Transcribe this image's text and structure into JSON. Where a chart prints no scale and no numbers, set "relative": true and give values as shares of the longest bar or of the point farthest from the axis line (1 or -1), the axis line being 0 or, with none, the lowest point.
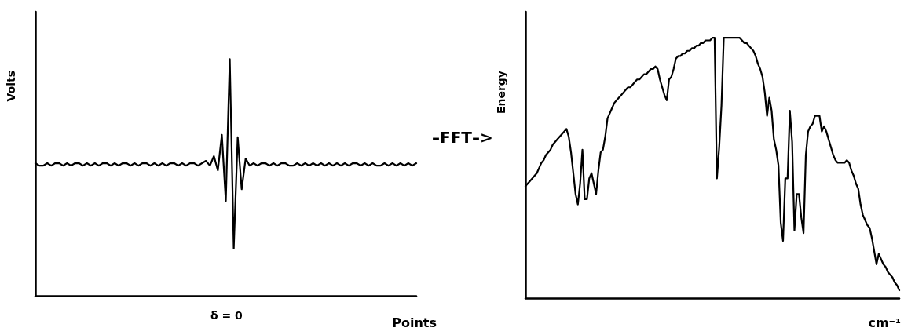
{
  "chart_data": [
    {
      "type": "line",
      "relative": true,
      "xlabel": "Points",
      "ylabel": "Volts",
      "color": "#000000",
      "marker": "none",
      "line_style": "solid",
      "annotations": [
        "δ = 0"
      ],
      "categories": [
        null,
        null,
        null,
        null,
        null,
        null,
        null,
        null,
        null,
        null,
        null,
        null,
        null,
        null,
        null,
        null,
        null,
        null,
        null,
        null,
        null,
        null,
        null,
        null,
        null,
        null,
        null,
        null,
        null,
        null,
        null,
        null,
        null,
        null,
        null,
        null,
        null,
        null,
        null,
        null,
        null,
        null,
        null,
        null,
        null,
        null,
        null,
        null,
        null,
        null,
        null,
        null,
        null,
        null,
        null,
        null,
        null,
        null,
        null,
        null,
        null,
        null,
        null,
        null,
        null,
        null,
        null,
        null,
        null,
        null,
        null,
        null,
        null,
        null,
        null,
        null,
        null,
        null,
        null,
        null,
        null,
        null,
        null,
        null,
        null,
        null,
        null,
        null,
        null,
        null,
        null,
        null,
        null,
        null,
        null,
        null,
        null
      ],
      "values": [
        0.56,
        0.55,
        0.55,
        0.56,
        0.55,
        0.56,
        0.56,
        0.55,
        0.56,
        0.55,
        0.56,
        0.56,
        0.55,
        0.56,
        0.55,
        0.56,
        0.55,
        0.56,
        0.56,
        0.55,
        0.56,
        0.55,
        0.56,
        0.56,
        0.55,
        0.56,
        0.55,
        0.56,
        0.56,
        0.55,
        0.56,
        0.55,
        0.56,
        0.55,
        0.56,
        0.56,
        0.55,
        0.56,
        0.55,
        0.56,
        0.56,
        0.55,
        0.56,
        0.57,
        0.55,
        0.59,
        0.53,
        0.68,
        0.4,
        1.0,
        0.2,
        0.67,
        0.45,
        0.58,
        0.55,
        0.56,
        0.55,
        0.56,
        0.56,
        0.55,
        0.56,
        0.55,
        0.56,
        0.56,
        0.55,
        0.55,
        0.56,
        0.55,
        0.56,
        0.55,
        0.56,
        0.55,
        0.56,
        0.55,
        0.56,
        0.55,
        0.56,
        0.55,
        0.56,
        0.55,
        0.56,
        0.56,
        0.55,
        0.56,
        0.55,
        0.56,
        0.55,
        0.55,
        0.56,
        0.55,
        0.56,
        0.55,
        0.56,
        0.55,
        0.56,
        0.55,
        0.56
      ]
    },
    {
      "type": "line",
      "relative": true,
      "xlabel": "cm⁻¹",
      "ylabel": "Energy",
      "color": "#000000",
      "marker": "none",
      "line_style": "solid",
      "annotations": [
        "–FFT–>"
      ],
      "categories": [
        null,
        null,
        null,
        null,
        null,
        null,
        null,
        null,
        null,
        null,
        null,
        null,
        null,
        null,
        null,
        null,
        null,
        null,
        null,
        null,
        null,
        null,
        null,
        null,
        null,
        null,
        null,
        null,
        null,
        null,
        null,
        null,
        null,
        null,
        null,
        null,
        null,
        null,
        null,
        null,
        null,
        null,
        null,
        null,
        null,
        null,
        null,
        null,
        null,
        null,
        null,
        null,
        null,
        null,
        null,
        null,
        null,
        null,
        null,
        null,
        null,
        null,
        null,
        null,
        null,
        null,
        null,
        null,
        null,
        null,
        null,
        null,
        null,
        null,
        null,
        null,
        null,
        null,
        null,
        null,
        null,
        null,
        null,
        null,
        null,
        null,
        null,
        null,
        null,
        null,
        null,
        null,
        null,
        null,
        null,
        null,
        null,
        null,
        null,
        null,
        null,
        null,
        null,
        null,
        null,
        null,
        null,
        null,
        null,
        null,
        null,
        null,
        null,
        null,
        null,
        null,
        null,
        null,
        null,
        null,
        null,
        null,
        null,
        null,
        null,
        null,
        null,
        null,
        null,
        null,
        null,
        null,
        null,
        null,
        null,
        null,
        null,
        null,
        null,
        null,
        null,
        null,
        null,
        null,
        null,
        null,
        null,
        null,
        null,
        null,
        null,
        null,
        null,
        null,
        null,
        null,
        null,
        null,
        null,
        null,
        null,
        null,
        null,
        null,
        null
      ],
      "values": [
        0.43,
        0.44,
        0.45,
        0.46,
        0.47,
        0.48,
        0.5,
        0.52,
        0.53,
        0.55,
        0.56,
        0.57,
        0.59,
        0.6,
        0.61,
        0.62,
        0.63,
        0.64,
        0.65,
        0.62,
        0.56,
        0.48,
        0.4,
        0.36,
        0.44,
        0.57,
        0.38,
        0.38,
        0.46,
        0.48,
        0.44,
        0.4,
        0.49,
        0.56,
        0.57,
        0.62,
        0.69,
        0.71,
        0.73,
        0.75,
        0.76,
        0.77,
        0.78,
        0.79,
        0.8,
        0.81,
        0.81,
        0.82,
        0.83,
        0.84,
        0.84,
        0.85,
        0.86,
        0.86,
        0.87,
        0.88,
        0.88,
        0.89,
        0.88,
        0.84,
        0.81,
        0.78,
        0.76,
        0.84,
        0.85,
        0.88,
        0.92,
        0.93,
        0.93,
        0.94,
        0.94,
        0.95,
        0.95,
        0.96,
        0.96,
        0.97,
        0.97,
        0.98,
        0.98,
        0.99,
        0.99,
        0.99,
        1.0,
        1.0,
        0.46,
        0.58,
        0.74,
        1.0,
        1.0,
        1.0,
        1.0,
        1.0,
        1.0,
        1.0,
        1.0,
        0.99,
        0.98,
        0.98,
        0.97,
        0.96,
        0.95,
        0.93,
        0.9,
        0.88,
        0.85,
        0.79,
        0.7,
        0.77,
        0.72,
        0.61,
        0.57,
        0.51,
        0.29,
        0.22,
        0.46,
        0.46,
        0.72,
        0.6,
        0.26,
        0.4,
        0.4,
        0.31,
        0.25,
        0.55,
        0.64,
        0.66,
        0.67,
        0.7,
        0.7,
        0.7,
        0.64,
        0.66,
        0.64,
        0.61,
        0.58,
        0.55,
        0.53,
        0.52,
        0.52,
        0.52,
        0.52,
        0.53,
        0.52,
        0.49,
        0.47,
        0.44,
        0.42,
        0.36,
        0.32,
        0.3,
        0.28,
        0.27,
        0.23,
        0.18,
        0.13,
        0.17,
        0.15,
        0.13,
        0.12,
        0.1,
        0.09,
        0.08,
        0.06,
        0.05,
        0.03
      ]
    }
  ]
}
